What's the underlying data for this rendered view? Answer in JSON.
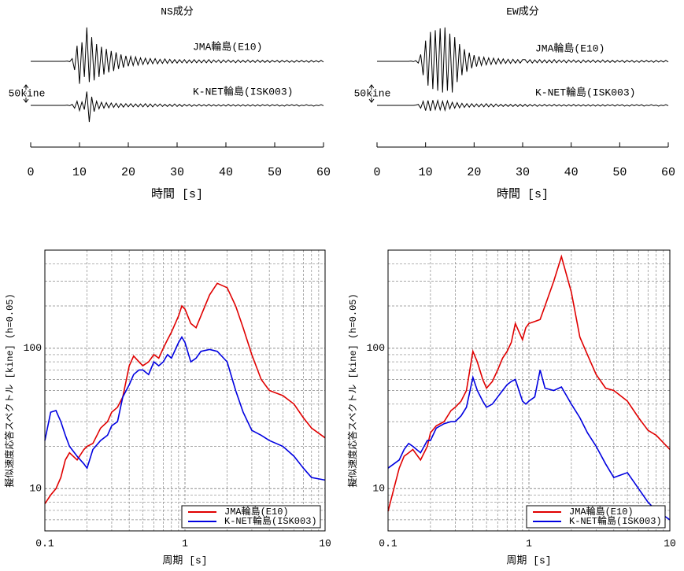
{
  "chart_data": [
    {
      "type": "waveform",
      "title": "NS成分",
      "xlabel": "時間 [s]",
      "xlim": [
        0,
        60
      ],
      "xticks": [
        0,
        10,
        20,
        30,
        40,
        50,
        60
      ],
      "scale_bar": 50,
      "scale_bar_label": "50kine",
      "x": [
        0,
        0.5,
        1,
        1.5,
        2,
        2.5,
        3,
        3.5,
        4,
        4.5,
        5,
        5.5,
        6,
        6.5,
        7,
        7.5,
        8,
        8.5,
        9,
        9.5,
        10,
        10.5,
        11,
        11.5,
        12,
        12.5,
        13,
        13.5,
        14,
        14.5,
        15,
        15.5,
        16,
        16.5,
        17,
        17.5,
        18,
        18.5,
        19,
        19.5,
        20,
        20.5,
        21,
        21.5,
        22,
        22.5,
        23,
        23.5,
        24,
        24.5,
        25,
        25.5,
        26,
        26.5,
        27,
        27.5,
        28,
        28.5,
        29,
        29.5,
        30,
        30.5,
        31,
        31.5,
        32,
        32.5,
        33,
        33.5,
        34,
        34.5,
        35,
        35.5,
        36,
        36.5,
        37,
        37.5,
        38,
        38.5,
        39,
        39.5,
        40,
        40.5,
        41,
        41.5,
        42,
        42.5,
        43,
        43.5,
        44,
        44.5,
        45,
        45.5,
        46,
        46.5,
        47,
        47.5,
        48,
        48.5,
        49,
        49.5,
        50,
        50.5,
        51,
        51.5,
        52,
        52.5,
        53,
        53.5,
        54,
        54.5,
        55,
        55.5,
        56,
        56.5,
        57,
        57.5,
        58,
        58.5,
        59,
        59.5,
        60
      ],
      "series": [
        {
          "name": "JMA輪島(E10)",
          "color": "#000000",
          "values": [
            0,
            0,
            0,
            0,
            0,
            0,
            0,
            0,
            0,
            0,
            0,
            0,
            0,
            0,
            0,
            1,
            -1,
            8,
            -25,
            45,
            -65,
            55,
            -45,
            98,
            -60,
            70,
            -55,
            50,
            -45,
            42,
            -38,
            36,
            -32,
            30,
            -28,
            26,
            -22,
            20,
            -18,
            16,
            -14,
            14,
            -12,
            13,
            -11,
            10,
            -9,
            9,
            -8,
            8,
            -7,
            8,
            -7,
            6,
            -6,
            7,
            -6,
            6,
            -5,
            5,
            -5,
            5,
            -4,
            5,
            -5,
            4,
            -4,
            5,
            -4,
            4,
            -4,
            4,
            -4,
            5,
            -4,
            4,
            -3,
            4,
            -4,
            4,
            -3,
            4,
            -3,
            3,
            -4,
            4,
            -3,
            3,
            -3,
            4,
            -3,
            3,
            -3,
            4,
            -3,
            3,
            -3,
            3,
            -3,
            3,
            -2,
            3,
            -3,
            3,
            -2,
            3,
            -3,
            2,
            -3,
            3,
            -2,
            3,
            -2,
            2,
            -3,
            3,
            -2,
            2,
            -2,
            3,
            -2
          ]
        },
        {
          "name": "K-NET輪島(ISK003)",
          "color": "#000000",
          "values": [
            0,
            0,
            0,
            0,
            0,
            0,
            0,
            0,
            0,
            0,
            0,
            0,
            0,
            0,
            0,
            1,
            -1,
            3,
            -8,
            12,
            -15,
            10,
            -12,
            40,
            -48,
            25,
            -18,
            12,
            -10,
            9,
            -8,
            8,
            -7,
            7,
            -6,
            6,
            -6,
            5,
            -5,
            5,
            -4,
            5,
            -4,
            4,
            -4,
            4,
            -4,
            5,
            -4,
            4,
            -4,
            4,
            -3,
            4,
            -3,
            3,
            -3,
            3,
            -3,
            4,
            -3,
            3,
            -3,
            3,
            -2,
            3,
            -3,
            2,
            -2,
            3,
            -2,
            2,
            -2,
            3,
            -2,
            2,
            -2,
            2,
            -2,
            2,
            -2,
            3,
            -2,
            2,
            -2,
            2,
            -2,
            2,
            -2,
            2,
            -2,
            2,
            -2,
            2,
            -2,
            2,
            -1,
            2,
            -2,
            2,
            -1,
            2,
            -2,
            1,
            -2,
            2,
            -1,
            2,
            -1,
            2,
            -2,
            1,
            -1,
            2,
            -1,
            1,
            -2,
            1,
            -1,
            2,
            -1
          ]
        }
      ]
    },
    {
      "type": "waveform",
      "title": "EW成分",
      "xlabel": "時間 [s]",
      "xlim": [
        0,
        60
      ],
      "xticks": [
        0,
        10,
        20,
        30,
        40,
        50,
        60
      ],
      "scale_bar": 50,
      "scale_bar_label": "50kine",
      "x": [
        0,
        0.5,
        1,
        1.5,
        2,
        2.5,
        3,
        3.5,
        4,
        4.5,
        5,
        5.5,
        6,
        6.5,
        7,
        7.5,
        8,
        8.5,
        9,
        9.5,
        10,
        10.5,
        11,
        11.5,
        12,
        12.5,
        13,
        13.5,
        14,
        14.5,
        15,
        15.5,
        16,
        16.5,
        17,
        17.5,
        18,
        18.5,
        19,
        19.5,
        20,
        20.5,
        21,
        21.5,
        22,
        22.5,
        23,
        23.5,
        24,
        24.5,
        25,
        25.5,
        26,
        26.5,
        27,
        27.5,
        28,
        28.5,
        29,
        29.5,
        30,
        30.5,
        31,
        31.5,
        32,
        32.5,
        33,
        33.5,
        34,
        34.5,
        35,
        35.5,
        36,
        36.5,
        37,
        37.5,
        38,
        38.5,
        39,
        39.5,
        40,
        40.5,
        41,
        41.5,
        42,
        42.5,
        43,
        43.5,
        44,
        44.5,
        45,
        45.5,
        46,
        46.5,
        47,
        47.5,
        48,
        48.5,
        49,
        49.5,
        50,
        50.5,
        51,
        51.5,
        52,
        52.5,
        53,
        53.5,
        54,
        54.5,
        55,
        55.5,
        56,
        56.5,
        57,
        57.5,
        58,
        58.5,
        59,
        59.5,
        60
      ],
      "series": [
        {
          "name": "JMA輪島(E10)",
          "color": "#000000",
          "values": [
            0,
            0,
            0,
            0,
            0,
            0,
            0,
            0,
            0,
            0,
            0,
            0,
            0,
            0,
            1,
            -1,
            2,
            -5,
            20,
            -40,
            60,
            -70,
            85,
            -80,
            90,
            -85,
            95,
            -90,
            98,
            -85,
            80,
            -90,
            70,
            -60,
            50,
            -40,
            35,
            -30,
            25,
            -20,
            18,
            -15,
            14,
            -12,
            12,
            -10,
            10,
            -9,
            9,
            -8,
            8,
            -7,
            7,
            -6,
            6,
            -6,
            6,
            -5,
            5,
            -5,
            5,
            5,
            -4,
            5,
            -5,
            4,
            -4,
            5,
            -4,
            4,
            -4,
            4,
            -4,
            5,
            -4,
            4,
            -3,
            4,
            -4,
            4,
            -3,
            4,
            -3,
            3,
            -4,
            4,
            -3,
            3,
            -3,
            4,
            -3,
            3,
            -3,
            4,
            -3,
            3,
            -3,
            3,
            -3,
            3,
            -2,
            3,
            -3,
            3,
            -2,
            3,
            -3,
            2,
            -3,
            3,
            -2,
            3,
            -2,
            2,
            -3,
            3,
            -2,
            2,
            -2,
            3,
            -2
          ]
        },
        {
          "name": "K-NET輪島(ISK003)",
          "color": "#000000",
          "values": [
            0,
            0,
            0,
            0,
            0,
            0,
            0,
            0,
            0,
            0,
            0,
            0,
            0,
            0,
            0,
            0,
            1,
            3,
            -8,
            12,
            -15,
            14,
            -16,
            15,
            -12,
            14,
            -13,
            12,
            -14,
            13,
            -10,
            9,
            -8,
            8,
            -7,
            6,
            -6,
            5,
            -5,
            5,
            -4,
            4,
            -4,
            4,
            -4,
            5,
            -4,
            4,
            -4,
            4,
            -3,
            3,
            -3,
            3,
            -3,
            3,
            -3,
            3,
            -3,
            3,
            -3,
            3,
            -3,
            3,
            -2,
            3,
            -3,
            2,
            -2,
            3,
            -2,
            2,
            -2,
            3,
            -2,
            2,
            -2,
            2,
            -2,
            2,
            -2,
            3,
            -2,
            2,
            -2,
            2,
            -2,
            2,
            -2,
            2,
            -2,
            2,
            -2,
            2,
            -2,
            2,
            -1,
            2,
            -2,
            2,
            -1,
            2,
            -2,
            1,
            -2,
            2,
            -1,
            2,
            -1,
            2,
            -2,
            1,
            -1,
            2,
            -1,
            1,
            -2,
            1,
            -1,
            2,
            -1
          ]
        }
      ]
    },
    {
      "type": "line",
      "xlabel": "周期 [s]",
      "ylabel": "擬似速度応答スペクトル [kine] (h=0.05)",
      "log_x": true,
      "log_y": true,
      "grid": true,
      "legend": "lower right",
      "xlim": [
        0.1,
        10
      ],
      "ylim": [
        5,
        500
      ],
      "xticks": [
        0.1,
        1,
        10
      ],
      "yticks": [
        10,
        100
      ],
      "x": [
        0.1,
        0.11,
        0.12,
        0.13,
        0.14,
        0.15,
        0.17,
        0.19,
        0.2,
        0.22,
        0.25,
        0.28,
        0.3,
        0.33,
        0.36,
        0.4,
        0.43,
        0.47,
        0.5,
        0.55,
        0.6,
        0.65,
        0.7,
        0.75,
        0.8,
        0.9,
        0.95,
        1,
        1.1,
        1.2,
        1.3,
        1.5,
        1.7,
        2,
        2.3,
        2.6,
        3,
        3.5,
        4,
        5,
        6,
        7,
        8,
        10
      ],
      "series": [
        {
          "name": "JMA輪島(E10)",
          "color": "#e00000",
          "values": [
            7.8,
            9,
            10,
            12,
            16,
            18,
            16,
            19,
            20,
            21,
            27,
            30,
            35,
            38,
            45,
            75,
            88,
            80,
            75,
            80,
            90,
            85,
            100,
            115,
            130,
            170,
            200,
            190,
            150,
            140,
            170,
            240,
            290,
            270,
            200,
            140,
            90,
            60,
            50,
            46,
            40,
            32,
            27,
            23
          ]
        },
        {
          "name": "K-NET輪島(ISK003)",
          "color": "#0000e0",
          "values": [
            22,
            35,
            36,
            30,
            24,
            20,
            17,
            15,
            14,
            19,
            22,
            24,
            28,
            30,
            45,
            55,
            65,
            70,
            70,
            65,
            80,
            75,
            80,
            90,
            85,
            110,
            120,
            110,
            80,
            85,
            95,
            98,
            95,
            80,
            50,
            35,
            26,
            24,
            22,
            20,
            17,
            14,
            12,
            11.5
          ]
        }
      ]
    },
    {
      "type": "line",
      "xlabel": "周期 [s]",
      "ylabel": "擬似速度応答スペクトル [kine] (h=0.05)",
      "log_x": true,
      "log_y": true,
      "grid": true,
      "legend": "lower right",
      "xlim": [
        0.1,
        10
      ],
      "ylim": [
        5,
        500
      ],
      "xticks": [
        0.1,
        1,
        10
      ],
      "yticks": [
        10,
        100
      ],
      "x": [
        0.1,
        0.11,
        0.12,
        0.13,
        0.14,
        0.15,
        0.17,
        0.19,
        0.2,
        0.22,
        0.25,
        0.28,
        0.3,
        0.33,
        0.36,
        0.4,
        0.43,
        0.47,
        0.5,
        0.55,
        0.6,
        0.65,
        0.7,
        0.75,
        0.8,
        0.9,
        0.95,
        1,
        1.1,
        1.2,
        1.3,
        1.5,
        1.7,
        2,
        2.3,
        2.6,
        3,
        3.5,
        4,
        5,
        6,
        7,
        8,
        10
      ],
      "series": [
        {
          "name": "JMA輪島(E10)",
          "color": "#e00000",
          "values": [
            6.9,
            10,
            14,
            17,
            18,
            19,
            16,
            20,
            25,
            28,
            30,
            36,
            38,
            42,
            50,
            95,
            80,
            60,
            52,
            58,
            70,
            85,
            95,
            110,
            150,
            115,
            140,
            150,
            155,
            160,
            200,
            300,
            450,
            250,
            120,
            90,
            65,
            52,
            50,
            42,
            32,
            26,
            24,
            19
          ]
        },
        {
          "name": "K-NET輪島(ISK003)",
          "color": "#0000e0",
          "values": [
            14,
            15,
            16,
            19,
            21,
            20,
            18,
            22,
            22,
            27,
            29,
            30,
            30,
            33,
            38,
            62,
            50,
            42,
            38,
            40,
            45,
            50,
            55,
            58,
            60,
            42,
            40,
            42,
            45,
            70,
            52,
            50,
            53,
            40,
            32,
            25,
            20,
            15,
            12,
            13,
            10,
            8,
            7,
            6
          ]
        }
      ]
    }
  ]
}
